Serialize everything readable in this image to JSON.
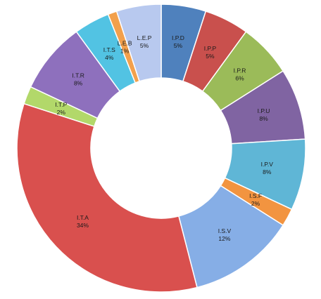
{
  "chart_data": {
    "type": "donut",
    "categories": [
      "I.P.D",
      "I.P.P",
      "I.P.R",
      "I.P.U",
      "I.P.V",
      "I.S.F",
      "I.S.V",
      "I.T.A",
      "I.T.P",
      "I.T.R",
      "I.T.S",
      "L.E.B",
      "L.E.P"
    ],
    "values": [
      5,
      5,
      6,
      8,
      8,
      2,
      12,
      34,
      2,
      8,
      4,
      1,
      5
    ],
    "value_labels": [
      "5%",
      "5%",
      "6%",
      "8%",
      "8%",
      "2%",
      "12%",
      "34%",
      "2%",
      "8%",
      "4%",
      "1%",
      "5%"
    ],
    "colors": [
      "#4f81bd",
      "#c9504d",
      "#9bbb59",
      "#8064a2",
      "#5fb6d6",
      "#f29440",
      "#86aee6",
      "#d9504e",
      "#b2d86a",
      "#8e70bd",
      "#52c3e3",
      "#f2a04c",
      "#b8c9ef"
    ]
  }
}
